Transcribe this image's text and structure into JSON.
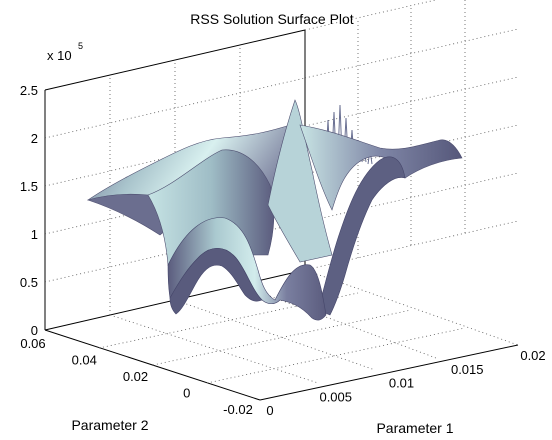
{
  "chart_data": {
    "type": "surface",
    "title": "RSS Solution Surface Plot",
    "xlabel": "Parameter 1",
    "ylabel": "Parameter 2",
    "zlabel": "",
    "z_exponent_label": "x 10",
    "z_exponent": "5",
    "xlim": [
      0,
      0.02
    ],
    "ylim": [
      -0.02,
      0.06
    ],
    "zlim": [
      0,
      2.5
    ],
    "x_ticks": [
      "0",
      "0.005",
      "0.01",
      "0.015",
      "0.02"
    ],
    "y_ticks": [
      "-0.02",
      "0",
      "0.02",
      "0.04",
      "0.06"
    ],
    "z_ticks": [
      "0",
      "0.5",
      "1",
      "1.5",
      "2",
      "2.5"
    ],
    "grid": "on",
    "colormap": "bone",
    "surface_colors": {
      "dark": "#5b5c7e",
      "mid": "#9fb7c3",
      "light": "#d6eeee"
    },
    "surface_features": {
      "back_ridge_z": [
        1.35,
        1.85
      ],
      "central_peak_z": 2.35,
      "deepest_trough_z": 0.05,
      "front_oscillation_z": [
        0.55,
        1.3
      ]
    }
  }
}
